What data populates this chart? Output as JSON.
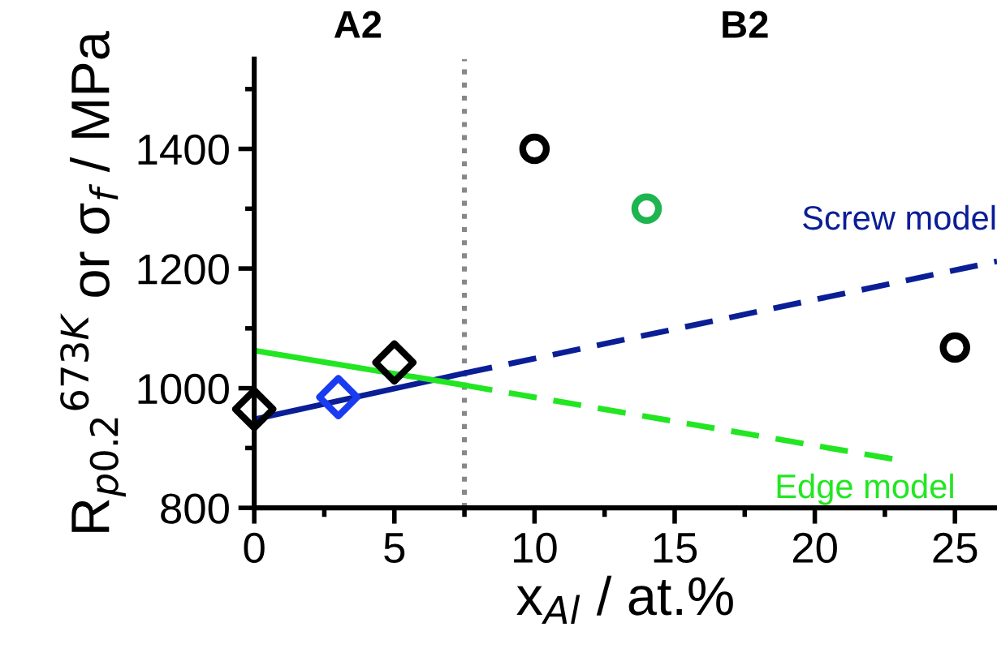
{
  "chart_data": {
    "type": "scatter",
    "xlabel": "x$_{Al}$ / at.%",
    "ylabel": "R$_{p0.2}$$^{673K}$ or σ$_{f}$ / MPa",
    "annotations": [
      "A2",
      "B2"
    ],
    "xlim": [
      0,
      26.5
    ],
    "xticks": [
      0,
      5,
      10,
      15,
      20,
      25
    ],
    "ylim": [
      800,
      1550
    ],
    "yticks": [
      800,
      1000,
      1200,
      1400
    ],
    "grid": false,
    "legend": false,
    "ref_lines": [
      {
        "axis": "x",
        "value": 7.5,
        "color": "#888888",
        "line_style": "dotted"
      }
    ],
    "series": [
      {
        "type": "line",
        "line_style": "solid",
        "marker": "none",
        "color": "#0a1e96",
        "x": [
          0,
          7.5
        ],
        "values": [
          948,
          1025
        ]
      },
      {
        "type": "line",
        "line_style": "dashed",
        "marker": "none",
        "name": "Screw model",
        "color": "#0a1e96",
        "x": [
          7.5,
          26.5
        ],
        "values": [
          1025,
          1212
        ]
      },
      {
        "type": "line",
        "line_style": "solid",
        "marker": "none",
        "color": "#22e622",
        "x": [
          0,
          7.5
        ],
        "values": [
          1063,
          1005
        ]
      },
      {
        "type": "line",
        "line_style": "dashed",
        "marker": "none",
        "name": "Edge model",
        "color": "#22e622",
        "x": [
          7.5,
          23
        ],
        "values": [
          1005,
          880
        ]
      },
      {
        "marker": "diamond",
        "color": "#000000",
        "x": [
          0,
          5
        ],
        "values": [
          965,
          1043
        ]
      },
      {
        "marker": "diamond",
        "color": "#1a3cf0",
        "x": [
          3
        ],
        "values": [
          985
        ]
      },
      {
        "marker": "circle",
        "color": "#000000",
        "x": [
          10,
          25
        ],
        "values": [
          1400,
          1068
        ]
      },
      {
        "marker": "circle",
        "color": "#1eb450",
        "x": [
          14
        ],
        "values": [
          1300
        ]
      }
    ]
  }
}
